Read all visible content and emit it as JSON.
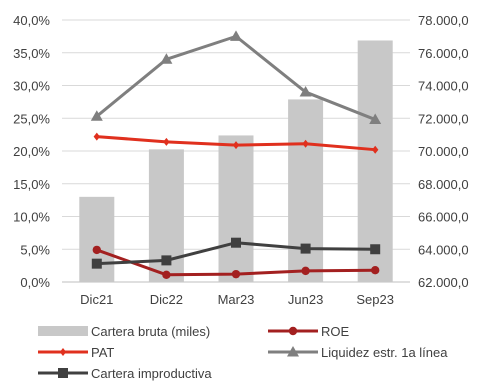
{
  "chart_data": {
    "type": "bar+line",
    "categories": [
      "Dic21",
      "Dic22",
      "Mar23",
      "Jun23",
      "Sep23"
    ],
    "y_left": {
      "min": 0,
      "max": 40,
      "step": 5,
      "ticks": [
        "0,0%",
        "5,0%",
        "10,0%",
        "15,0%",
        "20,0%",
        "25,0%",
        "30,0%",
        "35,0%",
        "40,0%"
      ]
    },
    "y_right": {
      "min": 62000,
      "max": 78000,
      "step": 2000,
      "ticks": [
        "62.000,0",
        "64.000,0",
        "66.000,0",
        "68.000,0",
        "70.000,0",
        "72.000,0",
        "74.000,0",
        "76.000,0",
        "78.000,0"
      ]
    },
    "grid": true,
    "legend_position": "bottom",
    "series": [
      {
        "name": "Cartera bruta (miles)",
        "kind": "bar",
        "axis": "right",
        "color": "#c8c8c8",
        "values": [
          67200,
          70100,
          70950,
          73150,
          76750
        ]
      },
      {
        "name": "ROE",
        "kind": "line",
        "marker": "circle",
        "axis": "left",
        "color": "#a32020",
        "values": [
          4.9,
          1.1,
          1.2,
          1.7,
          1.8
        ]
      },
      {
        "name": "PAT",
        "kind": "line",
        "marker": "diamond",
        "axis": "left",
        "color": "#e0301e",
        "values": [
          22.2,
          21.4,
          20.9,
          21.1,
          20.2
        ]
      },
      {
        "name": "Liquidez estr. 1a línea",
        "kind": "line",
        "marker": "triangle",
        "axis": "left",
        "color": "#7f7f7f",
        "values": [
          25.3,
          34.0,
          37.5,
          29.0,
          24.8
        ]
      },
      {
        "name": "Cartera improductiva",
        "kind": "line",
        "marker": "square",
        "axis": "left",
        "color": "#404040",
        "values": [
          2.8,
          3.3,
          6.0,
          5.1,
          5.0
        ]
      }
    ]
  }
}
